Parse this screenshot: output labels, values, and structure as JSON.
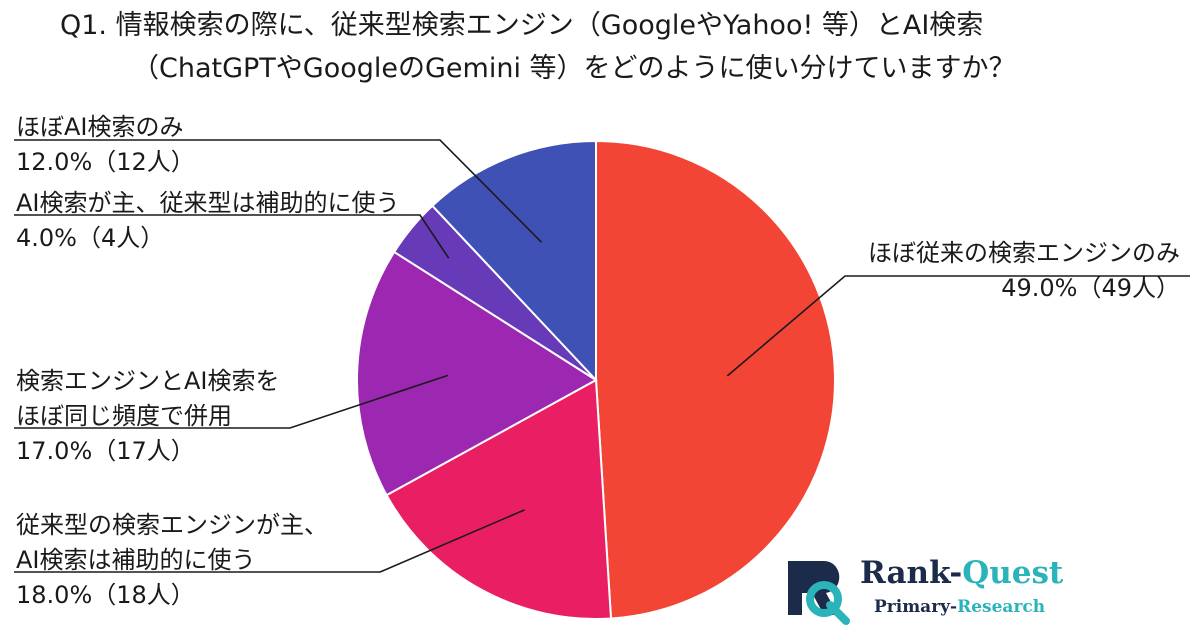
{
  "title": {
    "line1": "Q1. 情報検索の際に、従来型検索エンジン（GoogleやYahoo! 等）とAI検索",
    "line2": "（ChatGPTやGoogleのGemini 等）をどのように使い分けていますか？"
  },
  "chart_data": {
    "type": "pie",
    "title": "Q1. 情報検索の際に、従来型検索エンジン（GoogleやYahoo! 等）とAI検索（ChatGPTやGoogleのGemini 等）をどのように使い分けていますか？",
    "start": "12 o'clock",
    "direction": "clockwise",
    "slices": [
      {
        "label_lines": [
          "ほぼ従来の検索エンジンのみ"
        ],
        "value": 49.0,
        "pct_text": "49.0%（49人）",
        "color": "#f24536"
      },
      {
        "label_lines": [
          "従来型の検索エンジンが主、",
          "AI検索は補助的に使う"
        ],
        "value": 18.0,
        "pct_text": "18.0%（18人）",
        "color": "#e91e63"
      },
      {
        "label_lines": [
          "検索エンジンとAI検索を",
          "ほぼ同じ頻度で併用"
        ],
        "value": 17.0,
        "pct_text": "17.0%（17人）",
        "color": "#9c27b0"
      },
      {
        "label_lines": [
          "AI検索が主、従来型は補助的に使う"
        ],
        "value": 4.0,
        "pct_text": "4.0%（4人）",
        "color": "#673ab7"
      },
      {
        "label_lines": [
          "ほぼAI検索のみ"
        ],
        "value": 12.0,
        "pct_text": "12.0%（12人）",
        "color": "#3f51b5"
      }
    ]
  },
  "logo": {
    "name_part1": "Rank-",
    "name_part2": "Quest",
    "sub_part1": "Primary-",
    "sub_part2": "Research",
    "colors": {
      "navy": "#1c2b4a",
      "teal": "#2ab3b9"
    }
  }
}
